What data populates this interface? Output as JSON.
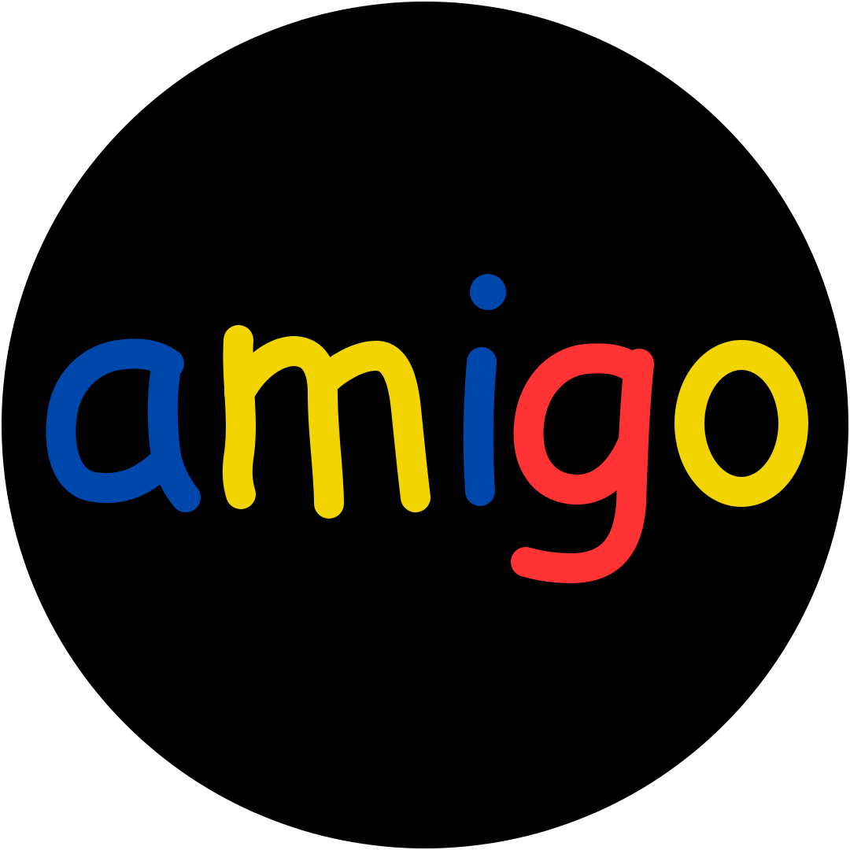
{
  "logo": {
    "wordmark": "amigo",
    "letters": [
      {
        "char": "a",
        "color": "#0047AB"
      },
      {
        "char": "m",
        "color": "#F2D500"
      },
      {
        "char": "i",
        "color": "#0047AB"
      },
      {
        "char": "g",
        "color": "#FF3333"
      },
      {
        "char": "o",
        "color": "#F2D500"
      }
    ],
    "background_color": "#000000"
  }
}
